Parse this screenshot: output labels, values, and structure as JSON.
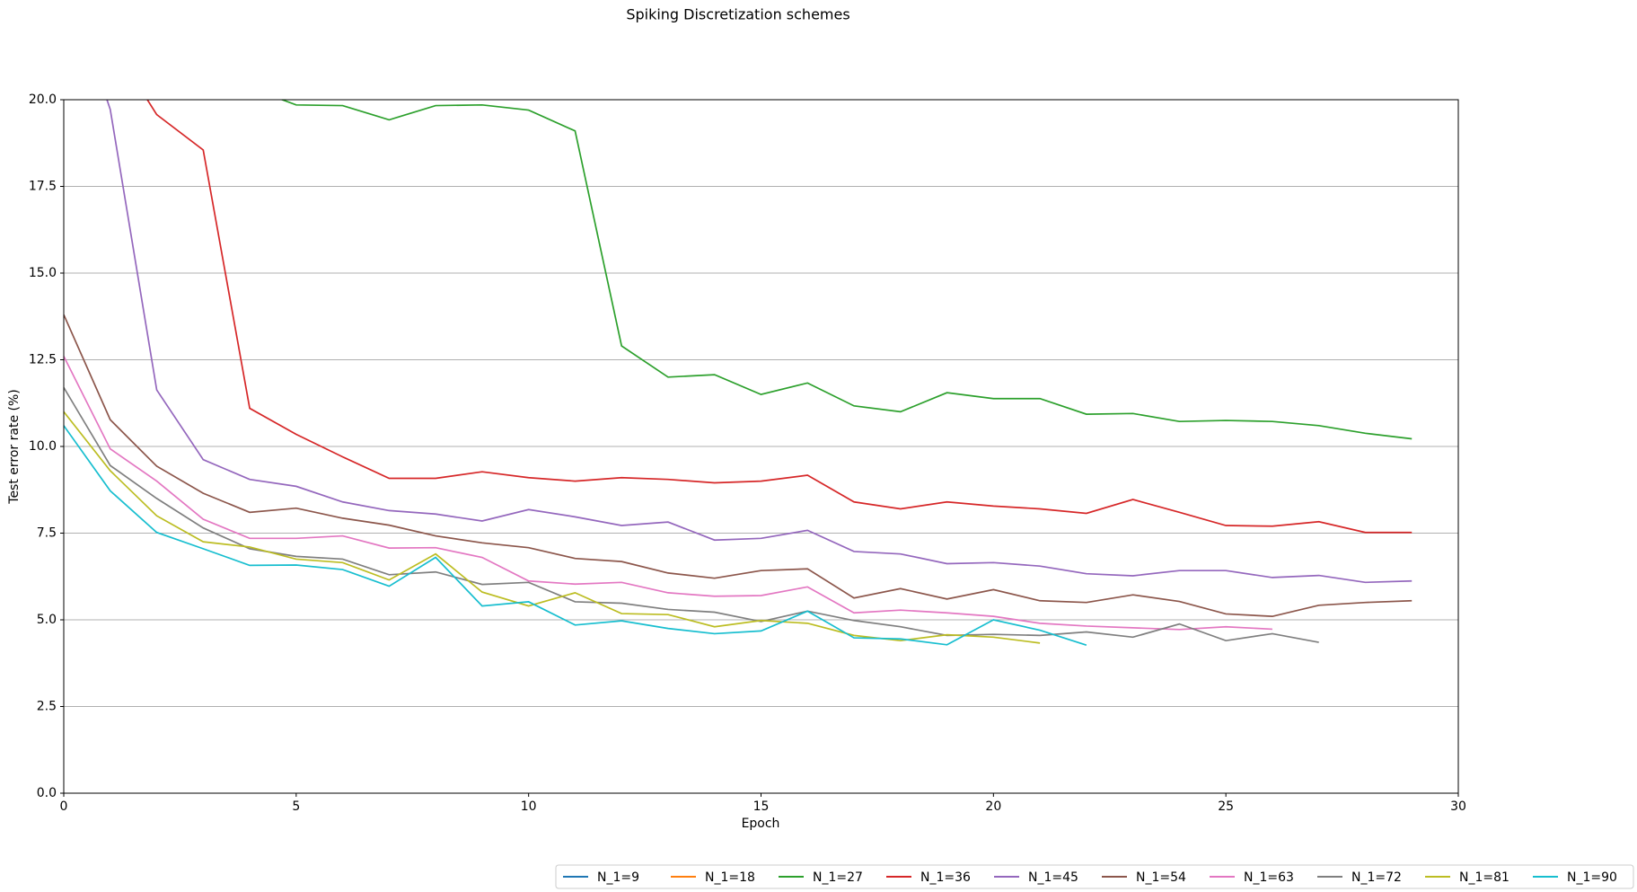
{
  "chart_data": {
    "type": "line",
    "title": "Spiking Discretization schemes",
    "x_label": "Epoch",
    "y_label": "Test error rate (%)",
    "x": [
      0,
      1,
      2,
      3,
      4,
      5,
      6,
      7,
      8,
      9,
      10,
      11,
      12,
      13,
      14,
      15,
      16,
      17,
      18,
      19,
      20,
      21,
      22,
      23,
      24,
      25,
      26,
      27,
      28,
      29
    ],
    "xlim": [
      0,
      30
    ],
    "xticks": [
      0,
      5,
      10,
      15,
      20,
      25,
      30
    ],
    "ylim": [
      0,
      20
    ],
    "yticks": [
      {
        "value": 0,
        "label": "0.0"
      },
      {
        "value": 2.5,
        "label": "2.5"
      },
      {
        "value": 5,
        "label": "5.0"
      },
      {
        "value": 7.5,
        "label": "7.5"
      },
      {
        "value": 10,
        "label": "10.0"
      },
      {
        "value": 12.5,
        "label": "12.5"
      },
      {
        "value": 15,
        "label": "15.0"
      },
      {
        "value": 17.5,
        "label": "17.5"
      },
      {
        "value": 20,
        "label": "20.0"
      }
    ],
    "grid": "y",
    "legend": "lower right",
    "series": [
      {
        "name": "N_1=9",
        "color": "#1f77b4",
        "values": [
          null,
          null,
          null,
          null,
          null,
          null,
          null,
          null,
          null,
          null,
          null,
          null,
          null,
          null,
          null,
          null,
          null,
          null,
          null,
          null,
          null,
          null,
          null,
          null,
          null,
          null,
          null,
          null,
          null,
          null
        ]
      },
      {
        "name": "N_1=18",
        "color": "#ff7f0e",
        "values": [
          null,
          null,
          null,
          null,
          null,
          null,
          null,
          null,
          null,
          null,
          null,
          null,
          null,
          null,
          null,
          null,
          null,
          null,
          null,
          null,
          null,
          null,
          null,
          null,
          null,
          null,
          null,
          null,
          null,
          null
        ]
      },
      {
        "name": "N_1=27",
        "color": "#2ca02c",
        "values": [
          null,
          null,
          null,
          null,
          20.35,
          19.85,
          19.83,
          19.42,
          19.83,
          19.85,
          19.7,
          19.1,
          12.9,
          12.0,
          12.07,
          11.5,
          11.83,
          11.17,
          11.0,
          11.55,
          11.38,
          11.38,
          10.93,
          10.95,
          10.72,
          10.75,
          10.72,
          10.6,
          10.38,
          10.22
        ]
      },
      {
        "name": "N_1=36",
        "color": "#d62728",
        "values": [
          null,
          21.7,
          19.57,
          18.55,
          11.1,
          10.35,
          9.7,
          9.08,
          9.08,
          9.27,
          9.1,
          9.0,
          9.1,
          9.05,
          8.95,
          9.0,
          9.17,
          8.4,
          8.2,
          8.4,
          8.28,
          8.2,
          8.07,
          8.47,
          8.1,
          7.72,
          7.7,
          7.83,
          7.52,
          7.52
        ]
      },
      {
        "name": "N_1=45",
        "color": "#9467bd",
        "values": [
          23.7,
          19.72,
          11.63,
          9.62,
          9.05,
          8.85,
          8.4,
          8.15,
          8.05,
          7.85,
          8.18,
          7.97,
          7.72,
          7.82,
          7.3,
          7.35,
          7.58,
          6.97,
          6.9,
          6.62,
          6.65,
          6.55,
          6.33,
          6.27,
          6.42,
          6.42,
          6.22,
          6.28,
          6.08,
          6.12
        ]
      },
      {
        "name": "N_1=54",
        "color": "#8c564b",
        "values": [
          13.8,
          10.77,
          9.43,
          8.65,
          8.1,
          8.22,
          7.93,
          7.73,
          7.42,
          7.22,
          7.08,
          6.77,
          6.68,
          6.35,
          6.2,
          6.42,
          6.47,
          5.63,
          5.9,
          5.6,
          5.87,
          5.55,
          5.5,
          5.72,
          5.53,
          5.17,
          5.1,
          5.42,
          5.5,
          5.55
        ]
      },
      {
        "name": "N_1=63",
        "color": "#e377c2",
        "values": [
          12.6,
          9.93,
          9.0,
          7.9,
          7.35,
          7.35,
          7.42,
          7.07,
          7.08,
          6.8,
          6.12,
          6.03,
          6.08,
          5.78,
          5.68,
          5.7,
          5.95,
          5.2,
          5.28,
          5.2,
          5.1,
          4.9,
          4.82,
          4.77,
          4.72,
          4.8,
          4.73,
          null,
          null,
          null
        ]
      },
      {
        "name": "N_1=72",
        "color": "#7f7f7f",
        "values": [
          11.7,
          9.45,
          8.5,
          7.65,
          7.05,
          6.83,
          6.75,
          6.3,
          6.38,
          6.02,
          6.08,
          5.52,
          5.48,
          5.3,
          5.22,
          4.95,
          5.25,
          4.98,
          4.8,
          4.55,
          4.58,
          4.55,
          4.65,
          4.5,
          4.88,
          4.4,
          4.6,
          4.35,
          null,
          null
        ]
      },
      {
        "name": "N_1=81",
        "color": "#bcbd22",
        "values": [
          11.0,
          9.3,
          8.0,
          7.25,
          7.1,
          6.75,
          6.65,
          6.15,
          6.9,
          5.8,
          5.4,
          5.78,
          5.18,
          5.15,
          4.8,
          4.98,
          4.9,
          4.55,
          4.4,
          4.57,
          4.5,
          4.33,
          null,
          null,
          null,
          null,
          null,
          null,
          null,
          null
        ]
      },
      {
        "name": "N_1=90",
        "color": "#17becf",
        "values": [
          10.6,
          8.72,
          7.52,
          7.05,
          6.57,
          6.58,
          6.45,
          5.97,
          6.8,
          5.4,
          5.52,
          4.85,
          4.97,
          4.75,
          4.6,
          4.68,
          5.25,
          4.48,
          4.45,
          4.28,
          5.0,
          4.7,
          4.27,
          null,
          null,
          null,
          null,
          null,
          null,
          null
        ]
      }
    ]
  }
}
